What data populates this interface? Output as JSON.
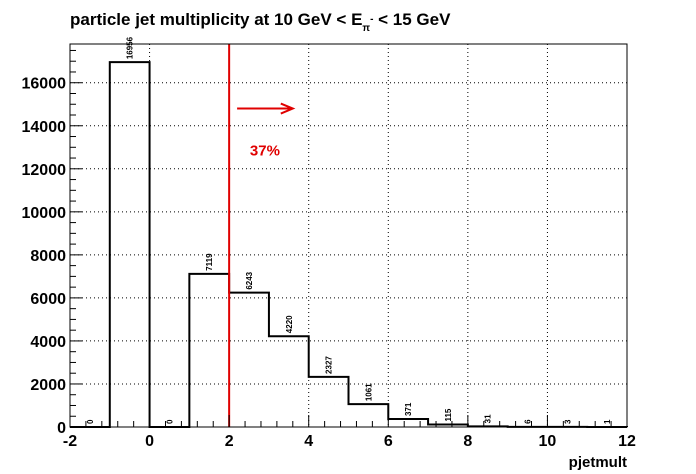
{
  "chart_data": {
    "type": "bar",
    "title_parts": {
      "before": "particle jet multiplicity at 10 GeV < E",
      "sub": "π",
      "sup": "-",
      "after": " < 15 GeV"
    },
    "xlabel": "pjetmult",
    "ylabel": "",
    "xlim": [
      -2,
      12
    ],
    "ylim": [
      0,
      17800
    ],
    "xticks": [
      -2,
      0,
      2,
      4,
      6,
      8,
      10,
      12
    ],
    "yticks": [
      0,
      2000,
      4000,
      6000,
      8000,
      10000,
      12000,
      14000,
      16000
    ],
    "bin_width": 1,
    "bins": [
      {
        "x_low": -2,
        "value": 0,
        "label": "0"
      },
      {
        "x_low": -1,
        "value": 16956,
        "label": "16956"
      },
      {
        "x_low": 0,
        "value": 0,
        "label": "0"
      },
      {
        "x_low": 1,
        "value": 7119,
        "label": "7119"
      },
      {
        "x_low": 2,
        "value": 6243,
        "label": "6243"
      },
      {
        "x_low": 3,
        "value": 4220,
        "label": "4220"
      },
      {
        "x_low": 4,
        "value": 2327,
        "label": "2327"
      },
      {
        "x_low": 5,
        "value": 1061,
        "label": "1061"
      },
      {
        "x_low": 6,
        "value": 371,
        "label": "371"
      },
      {
        "x_low": 7,
        "value": 115,
        "label": "115"
      },
      {
        "x_low": 8,
        "value": 31,
        "label": "31"
      },
      {
        "x_low": 9,
        "value": 6,
        "label": "6"
      },
      {
        "x_low": 10,
        "value": 3,
        "label": "3"
      },
      {
        "x_low": 11,
        "value": 1,
        "label": "1"
      }
    ],
    "cut_line_x": 2,
    "annotation": {
      "text": "37%",
      "arrow_from_x": 2.2,
      "arrow_to_x": 3.6,
      "arrow_y": 14800,
      "text_x": 2.9,
      "text_y": 12900
    },
    "grid": true,
    "colors": {
      "histogram": "#000000",
      "cut": "#e00000",
      "annotation": "#e00000",
      "grid": "#000000"
    }
  }
}
